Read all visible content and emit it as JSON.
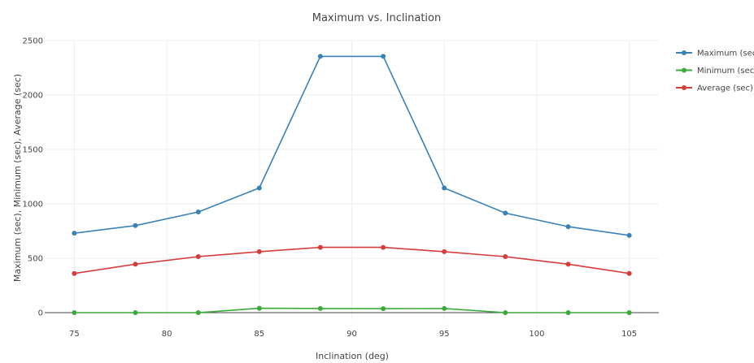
{
  "chart_data": {
    "type": "line",
    "title": "Maximum vs. Inclination",
    "xlabel": "Inclination (deg)",
    "ylabel": "Maximum (sec), Minimum (sec), Average (sec)",
    "xlim": [
      73.4,
      106.6
    ],
    "ylim": [
      -60,
      2500
    ],
    "xticks": [
      75,
      80,
      85,
      90,
      95,
      100,
      105
    ],
    "yticks": [
      0,
      500,
      1000,
      1500,
      2000,
      2500
    ],
    "x": [
      75,
      78.3,
      81.7,
      85,
      88.3,
      91.7,
      95,
      98.3,
      101.7,
      105
    ],
    "series": [
      {
        "name": "Maximum (sec)",
        "color": "#3a82b6",
        "values": [
          730,
          800,
          925,
          1145,
          2355,
          2355,
          1145,
          915,
          790,
          710
        ]
      },
      {
        "name": "Minimum (sec)",
        "color": "#3aaa3a",
        "values": [
          0,
          0,
          0,
          40,
          38,
          36,
          38,
          0,
          0,
          0
        ]
      },
      {
        "name": "Average (sec)",
        "color": "#d53d3c",
        "values": [
          360,
          445,
          515,
          560,
          600,
          600,
          560,
          515,
          445,
          360
        ]
      }
    ],
    "grid": true,
    "legend_position": "top-right"
  }
}
